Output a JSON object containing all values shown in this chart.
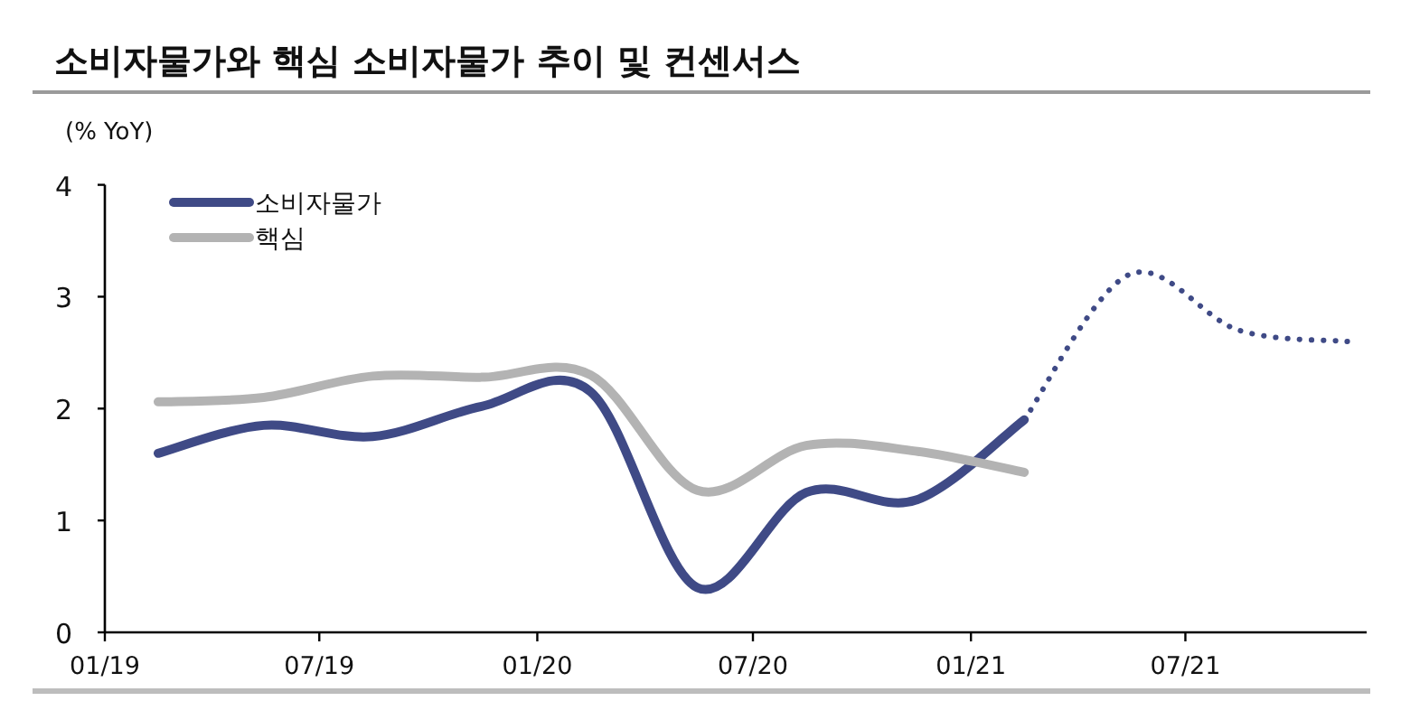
{
  "chart_data": {
    "type": "line",
    "title": "소비자물가와 핵심 소비자물가 추이 및 컨센서스",
    "ylabel": "(% YoY)",
    "xlim": [
      "2019-01",
      "2021-12"
    ],
    "xticks": [
      {
        "value": "2019-01",
        "label": "01/19"
      },
      {
        "value": "2019-07",
        "label": "07/19"
      },
      {
        "value": "2020-01",
        "label": "01/20"
      },
      {
        "value": "2020-07",
        "label": "07/20"
      },
      {
        "value": "2021-01",
        "label": "01/21"
      },
      {
        "value": "2021-07",
        "label": "07/21"
      }
    ],
    "ylim": [
      0,
      4
    ],
    "yticks": [
      0,
      1,
      2,
      3,
      4
    ],
    "grid": false,
    "legend": "top left",
    "marker": "none",
    "series": [
      {
        "name": "소비자물가",
        "color": "#3f4a86",
        "line_style": "solid",
        "x": [
          "2019-02-15",
          "2019-05-15",
          "2019-08-15",
          "2019-11-15",
          "2020-02-15",
          "2020-05-15",
          "2020-08-15",
          "2020-11-15",
          "2021-02-15"
        ],
        "values": [
          1.6,
          1.85,
          1.75,
          2.02,
          2.15,
          0.4,
          1.25,
          1.18,
          1.9
        ]
      },
      {
        "name": "핵심",
        "color": "#b3b3b3",
        "line_style": "solid",
        "x": [
          "2019-02-15",
          "2019-05-15",
          "2019-08-15",
          "2019-11-15",
          "2020-02-15",
          "2020-05-15",
          "2020-08-15",
          "2020-11-15",
          "2021-02-15"
        ],
        "values": [
          2.06,
          2.1,
          2.29,
          2.28,
          2.3,
          1.27,
          1.67,
          1.62,
          1.43
        ]
      },
      {
        "color": "#3f4a86",
        "line_style": "dotted",
        "x": [
          "2021-02-15",
          "2021-05-15",
          "2021-08-15",
          "2021-11-15"
        ],
        "values": [
          1.9,
          3.2,
          2.7,
          2.6
        ]
      }
    ]
  }
}
